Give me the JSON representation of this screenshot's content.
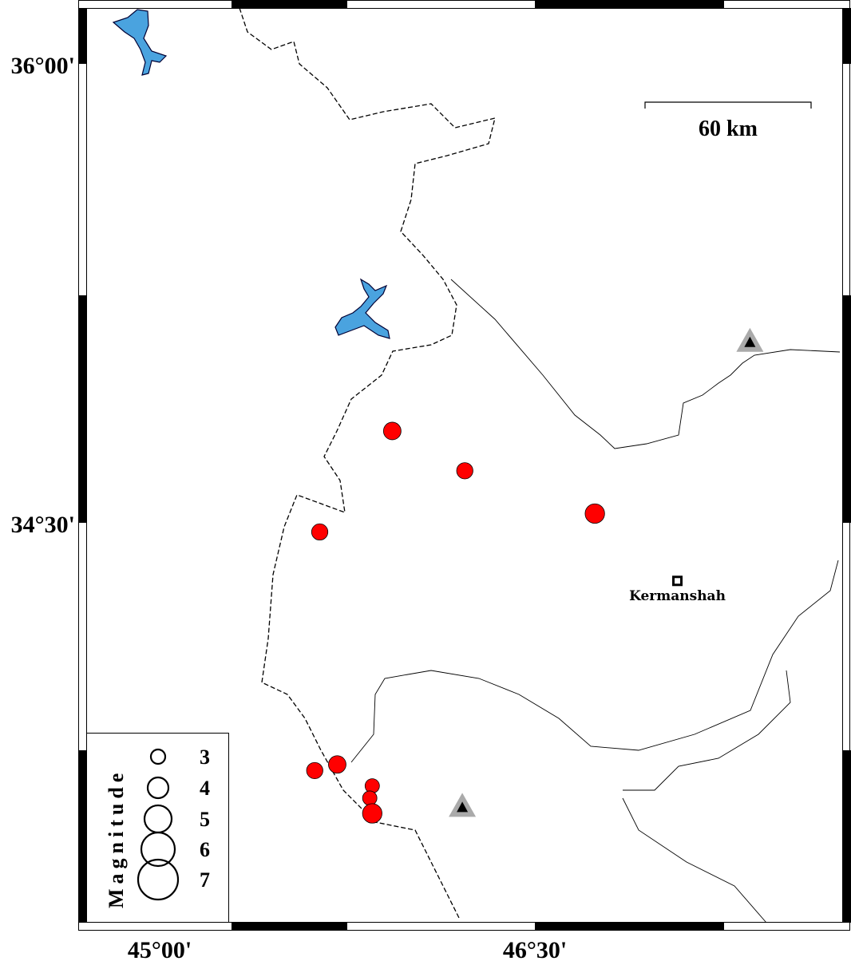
{
  "map": {
    "lon_ticks": [
      {
        "value": 45.0,
        "label": "45°00'"
      },
      {
        "value": 46.5,
        "label": "46°30'"
      }
    ],
    "lat_ticks": [
      {
        "value": 36.0,
        "label": "36°00'"
      },
      {
        "value": 34.5,
        "label": "34°30'"
      }
    ],
    "scale_bar": {
      "label": "60 km",
      "length_km": 60
    },
    "colors": {
      "event": "#ff0000",
      "water": "#4aa3df",
      "station_outer": "#aaaaaa",
      "station_inner": "#000000"
    },
    "events": [
      {
        "lon": 45.93,
        "lat": 34.8,
        "mag": 3.5
      },
      {
        "lon": 46.22,
        "lat": 34.67,
        "mag": 3.3
      },
      {
        "lon": 46.74,
        "lat": 34.53,
        "mag": 3.8
      },
      {
        "lon": 45.64,
        "lat": 34.47,
        "mag": 3.3
      },
      {
        "lon": 45.62,
        "lat": 33.69,
        "mag": 3.3
      },
      {
        "lon": 45.71,
        "lat": 33.71,
        "mag": 3.5
      },
      {
        "lon": 45.85,
        "lat": 33.64,
        "mag": 3.0
      },
      {
        "lon": 45.84,
        "lat": 33.6,
        "mag": 3.0
      },
      {
        "lon": 45.85,
        "lat": 33.55,
        "mag": 3.8
      }
    ],
    "stations": [
      {
        "lon": 47.36,
        "lat": 35.09
      },
      {
        "lon": 46.21,
        "lat": 33.57
      }
    ],
    "cities": [
      {
        "name": "Kermanshah",
        "lon": 47.07,
        "lat": 34.31
      }
    ],
    "legend": {
      "title": "Magnitude",
      "magnitudes": [
        "3",
        "4",
        "5",
        "6",
        "7"
      ]
    }
  }
}
